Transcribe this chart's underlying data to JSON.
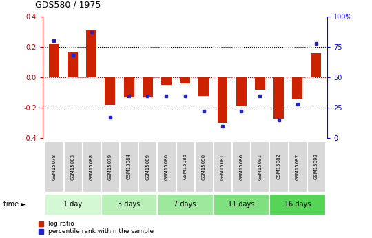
{
  "title": "GDS580 / 1975",
  "samples": [
    "GSM15078",
    "GSM15083",
    "GSM15088",
    "GSM15079",
    "GSM15084",
    "GSM15089",
    "GSM15080",
    "GSM15085",
    "GSM15090",
    "GSM15081",
    "GSM15086",
    "GSM15091",
    "GSM15082",
    "GSM15087",
    "GSM15092"
  ],
  "log_ratio": [
    0.22,
    0.17,
    0.31,
    -0.18,
    -0.13,
    -0.13,
    -0.05,
    -0.04,
    -0.12,
    -0.3,
    -0.19,
    -0.08,
    -0.27,
    -0.14,
    0.16
  ],
  "percentile_rank": [
    80,
    68,
    87,
    17,
    35,
    35,
    35,
    35,
    22,
    10,
    22,
    35,
    15,
    28,
    78
  ],
  "groups": [
    {
      "label": "1 day",
      "indices": [
        0,
        1,
        2
      ],
      "color": "#d4f7d4"
    },
    {
      "label": "3 days",
      "indices": [
        3,
        4,
        5
      ],
      "color": "#b8f0b8"
    },
    {
      "label": "7 days",
      "indices": [
        6,
        7,
        8
      ],
      "color": "#9de89d"
    },
    {
      "label": "11 days",
      "indices": [
        9,
        10,
        11
      ],
      "color": "#7fe07f"
    },
    {
      "label": "16 days",
      "indices": [
        12,
        13,
        14
      ],
      "color": "#55d455"
    }
  ],
  "bar_color": "#cc2200",
  "dot_color": "#2222cc",
  "ylim_left": [
    -0.4,
    0.4
  ],
  "yticks_left": [
    -0.4,
    -0.2,
    0.0,
    0.2,
    0.4
  ],
  "ytick_labels_right": [
    "0",
    "25",
    "50",
    "75",
    "100%"
  ],
  "ytick_vals_right": [
    0,
    25,
    50,
    75,
    100
  ],
  "bg_color": "#ffffff",
  "bar_width": 0.55
}
